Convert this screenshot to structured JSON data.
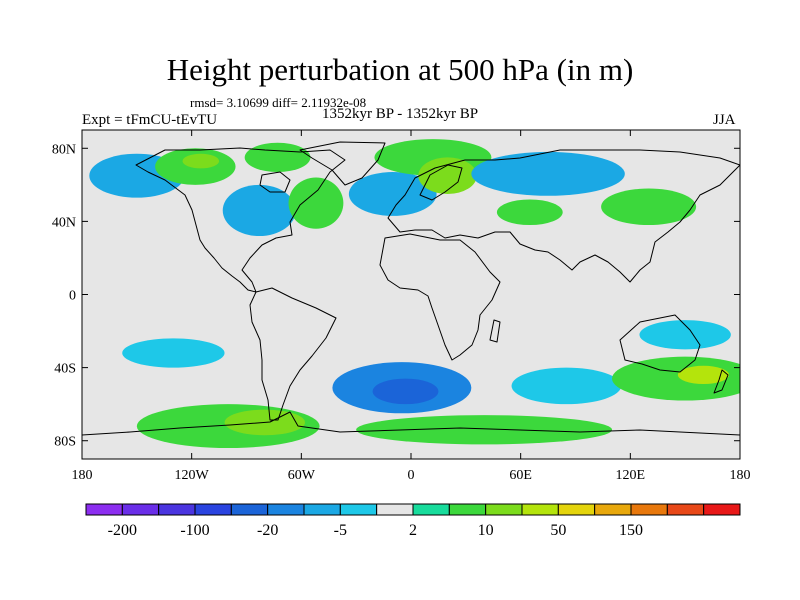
{
  "figure": {
    "title": "Height perturbation at 500 hPa (in m)",
    "stats": "rmsd= 3.10699 diff= 2.11932e-08",
    "left_label": "Expt = tFmCU-tEvTU",
    "center_label": "1352kyr BP - 1352kyr BP",
    "right_label": "JJA"
  },
  "map_data": {
    "projection": "cylindrical-equidistant",
    "lon_range": [
      -180,
      180
    ],
    "lat_range": [
      -90,
      90
    ],
    "lon_ticks": [
      {
        "value": -180,
        "label": "180"
      },
      {
        "value": -120,
        "label": "120W"
      },
      {
        "value": -60,
        "label": "60W"
      },
      {
        "value": 0,
        "label": "0"
      },
      {
        "value": 60,
        "label": "60E"
      },
      {
        "value": 120,
        "label": "120E"
      },
      {
        "value": 180,
        "label": "180"
      }
    ],
    "lat_ticks": [
      {
        "value": 80,
        "label": "80N"
      },
      {
        "value": 40,
        "label": "40N"
      },
      {
        "value": 0,
        "label": "0"
      },
      {
        "value": -40,
        "label": "40S"
      },
      {
        "value": -80,
        "label": "80S"
      }
    ],
    "anomalies": [
      {
        "name": "north-pacific-negative",
        "lon": -150,
        "lat": 65,
        "rlon": 26,
        "rlat": 12,
        "value": -8
      },
      {
        "name": "alaska-positive",
        "lon": -118,
        "lat": 70,
        "rlon": 22,
        "rlat": 10,
        "value": 8
      },
      {
        "name": "alaska-core-positive",
        "lon": -115,
        "lat": 73,
        "rlon": 10,
        "rlat": 4,
        "value": 14
      },
      {
        "name": "north-america-negative",
        "lon": -83,
        "lat": 46,
        "rlon": 20,
        "rlat": 14,
        "value": -8
      },
      {
        "name": "hudson-positive",
        "lon": -73,
        "lat": 75,
        "rlon": 18,
        "rlat": 8,
        "value": 5
      },
      {
        "name": "west-atlantic-positive",
        "lon": -52,
        "lat": 50,
        "rlon": 15,
        "rlat": 14,
        "value": 8
      },
      {
        "name": "north-atlantic-negative",
        "lon": -10,
        "lat": 55,
        "rlon": 24,
        "rlat": 12,
        "value": -7
      },
      {
        "name": "europe-positive",
        "lon": 12,
        "lat": 75,
        "rlon": 32,
        "rlat": 10,
        "value": 5
      },
      {
        "name": "scandinavia-positive",
        "lon": 20,
        "lat": 65,
        "rlon": 16,
        "rlat": 10,
        "value": 12
      },
      {
        "name": "siberia-negative",
        "lon": 75,
        "lat": 66,
        "rlon": 42,
        "rlat": 12,
        "value": -6
      },
      {
        "name": "central-asia-positive",
        "lon": 65,
        "lat": 45,
        "rlon": 18,
        "rlat": 7,
        "value": 6
      },
      {
        "name": "east-asia-positive",
        "lon": 130,
        "lat": 48,
        "rlon": 26,
        "rlat": 10,
        "value": 5
      },
      {
        "name": "south-pacific-west-negative",
        "lon": -130,
        "lat": -32,
        "rlon": 28,
        "rlat": 8,
        "value": -4
      },
      {
        "name": "south-pacific-positive",
        "lon": -100,
        "lat": -72,
        "rlon": 50,
        "rlat": 12,
        "value": 7
      },
      {
        "name": "amundsen-positive-core",
        "lon": -80,
        "lat": -70,
        "rlon": 22,
        "rlat": 7,
        "value": 14
      },
      {
        "name": "south-atlantic-negative",
        "lon": -5,
        "lat": -51,
        "rlon": 38,
        "rlat": 14,
        "value": -10
      },
      {
        "name": "south-atlantic-core",
        "lon": -3,
        "lat": -53,
        "rlon": 18,
        "rlat": 7,
        "value": -22
      },
      {
        "name": "southern-ocean-positive",
        "lon": 40,
        "lat": -74,
        "rlon": 70,
        "rlat": 8,
        "value": 5
      },
      {
        "name": "indian-ocean-negative",
        "lon": 85,
        "lat": -50,
        "rlon": 30,
        "rlat": 10,
        "value": -4
      },
      {
        "name": "south-indian-positive",
        "lon": 150,
        "lat": -46,
        "rlon": 40,
        "rlat": 12,
        "value": 8
      },
      {
        "name": "tasman-positive-core",
        "lon": 160,
        "lat": -44,
        "rlon": 14,
        "rlat": 5,
        "value": 22
      },
      {
        "name": "west-pacific-negative",
        "lon": 150,
        "lat": -22,
        "rlon": 25,
        "rlat": 8,
        "value": -3
      }
    ],
    "colorbar": {
      "colors": [
        "#8c2ef0",
        "#6a2ee8",
        "#4b35e0",
        "#2a44e0",
        "#1b64d8",
        "#1b84e0",
        "#1ba8e4",
        "#1ec8e8",
        "#e6e6e6",
        "#18dc9c",
        "#3cd83c",
        "#7cdc1c",
        "#b4e40c",
        "#e4d40c",
        "#e8a80c",
        "#e8780c",
        "#e84818",
        "#e81818"
      ],
      "labels": [
        {
          "boundary": 1,
          "text": "-200"
        },
        {
          "boundary": 3,
          "text": "-100"
        },
        {
          "boundary": 5,
          "text": "-20"
        },
        {
          "boundary": 7,
          "text": "-5"
        },
        {
          "boundary": 9,
          "text": "2"
        },
        {
          "boundary": 11,
          "text": "10"
        },
        {
          "boundary": 13,
          "text": "50"
        },
        {
          "boundary": 15,
          "text": "150"
        }
      ]
    }
  }
}
